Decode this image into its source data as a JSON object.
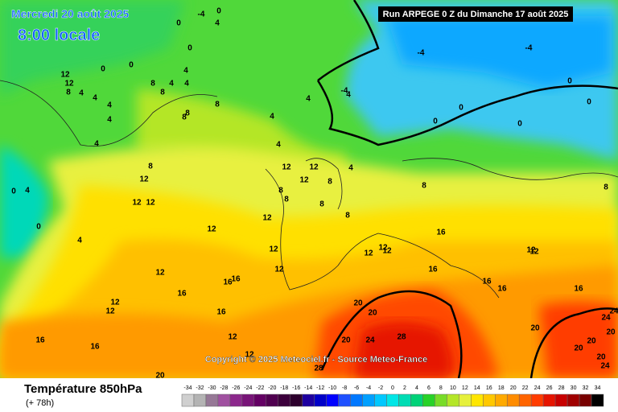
{
  "header": {
    "date": "Mercredi 20 août 2025",
    "local_time": "8:00 locale",
    "run": "Run ARPEGE 0 Z du Dimanche 17 août 2025"
  },
  "copyright": "Copyright © 2025 Meteociel.fr - Source Meteo-France",
  "footer": {
    "title": "Température 850hPa",
    "lead": "(+ 78h)"
  },
  "colorbar": {
    "values": [
      -34,
      -32,
      -30,
      -28,
      -26,
      -24,
      -22,
      -20,
      -18,
      -16,
      -14,
      -12,
      -10,
      -8,
      -6,
      -4,
      -2,
      0,
      2,
      4,
      6,
      8,
      10,
      12,
      14,
      16,
      18,
      20,
      22,
      24,
      26,
      28,
      30,
      32,
      34
    ],
    "colors": [
      "#d0d0d0",
      "#b4b4b4",
      "#967896",
      "#a050a0",
      "#8c288c",
      "#781478",
      "#640064",
      "#500050",
      "#3c003c",
      "#2d002d",
      "#1e00a0",
      "#0000c8",
      "#0000ff",
      "#1e50ff",
      "#0078ff",
      "#00a0ff",
      "#00c8ff",
      "#00e6e6",
      "#00dcb4",
      "#00d278",
      "#28d228",
      "#78dc28",
      "#b4e628",
      "#e6f03c",
      "#ffe600",
      "#ffc800",
      "#ffaa00",
      "#ff8c00",
      "#ff6400",
      "#ff3c00",
      "#e61400",
      "#c80000",
      "#a00000",
      "#780000",
      "#000000"
    ]
  },
  "contour_labels": [
    0,
    -4,
    0,
    4,
    0,
    0,
    0,
    12,
    12,
    8,
    4,
    4,
    4,
    4,
    4,
    4,
    4,
    8,
    8,
    8,
    8,
    8,
    4,
    4,
    4,
    4,
    -4,
    4,
    -4,
    -4,
    0,
    0,
    0,
    0,
    0,
    0,
    4,
    0,
    4,
    8,
    12,
    12,
    12,
    12,
    12,
    12,
    4,
    8,
    8,
    8,
    8,
    8,
    8,
    8,
    12,
    12,
    12,
    12,
    12,
    12,
    12,
    16,
    16,
    12,
    12,
    16,
    16,
    16,
    12,
    16,
    16,
    16,
    12,
    12,
    16,
    16,
    16,
    12,
    12,
    20,
    20,
    20,
    24,
    28,
    28,
    20,
    24,
    24,
    20,
    20,
    20,
    24,
    20,
    20
  ]
}
